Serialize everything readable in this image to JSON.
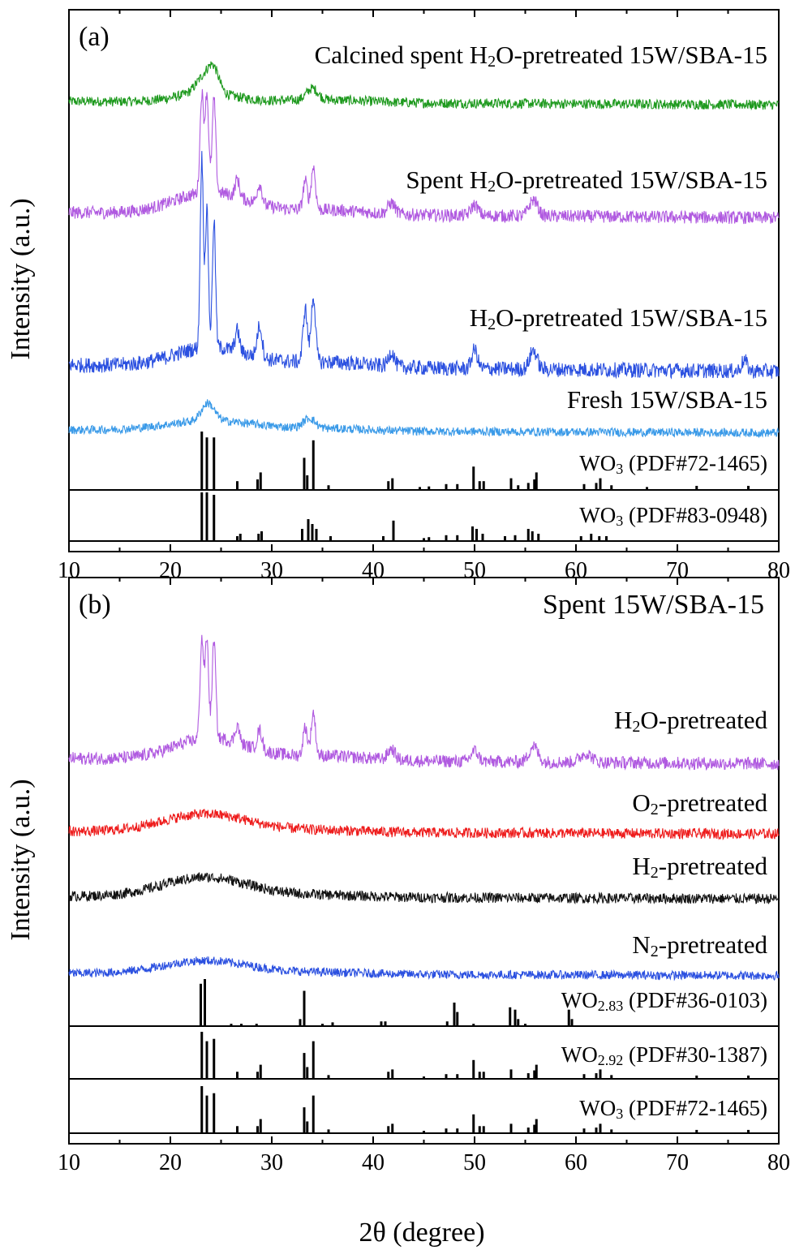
{
  "x_axis_label": "2θ (degree)",
  "y_axis_label": "Intensity (a.u.)",
  "chart_data": [
    {
      "type": "line",
      "panel_label": "(a)",
      "xlim": [
        10,
        80
      ],
      "x_ticks": [
        10,
        20,
        30,
        40,
        50,
        60,
        70,
        80
      ],
      "series": [
        {
          "name": "Calcined spent H₂O-pretreated 15W/SBA-15",
          "label_main": "Calcined spent H",
          "label_sub": "2",
          "label_tail": "O-pretreated 15W/SBA-15",
          "color": "#1f9a1f",
          "kind": "pattern",
          "base": 0.0,
          "amp": 1.0,
          "peaks": [
            [
              23.5,
              1.6,
              1.2
            ],
            [
              24.3,
              1.4,
              0.7
            ],
            [
              34.0,
              1.0,
              0.8
            ]
          ],
          "hump": [
            23.5,
            4.0,
            0.8
          ],
          "noise": 0.55
        },
        {
          "name": "Spent H₂O-pretreated 15W/SBA-15",
          "label_main": "Spent H",
          "label_sub": "2",
          "label_tail": "O-pretreated 15W/SBA-15",
          "color": "#b05ae0",
          "kind": "pattern",
          "base": 0.0,
          "amp": 1.0,
          "peaks": [
            [
              23.1,
              5.5,
              0.25
            ],
            [
              23.6,
              5.5,
              0.25
            ],
            [
              24.3,
              5.2,
              0.25
            ],
            [
              26.6,
              1.0,
              0.3
            ],
            [
              28.8,
              1.1,
              0.35
            ],
            [
              33.3,
              1.6,
              0.3
            ],
            [
              34.1,
              2.4,
              0.3
            ],
            [
              41.8,
              0.6,
              0.5
            ],
            [
              50.0,
              0.6,
              0.5
            ],
            [
              55.8,
              0.9,
              0.6
            ]
          ],
          "hump": [
            24.0,
            5.0,
            1.2
          ],
          "noise": 0.45
        },
        {
          "name": "H₂O-pretreated 15W/SBA-15",
          "label_main": "H",
          "label_sub": "2",
          "label_tail": "O-pretreated 15W/SBA-15",
          "color": "#2b50e0",
          "kind": "pattern",
          "base": 0.0,
          "amp": 1.0,
          "peaks": [
            [
              23.1,
              9.0,
              0.22
            ],
            [
              23.6,
              6.5,
              0.22
            ],
            [
              24.3,
              6.0,
              0.22
            ],
            [
              26.6,
              1.0,
              0.3
            ],
            [
              28.8,
              1.5,
              0.35
            ],
            [
              33.3,
              2.5,
              0.3
            ],
            [
              34.1,
              3.1,
              0.3
            ],
            [
              41.8,
              0.7,
              0.4
            ],
            [
              50.0,
              0.9,
              0.4
            ],
            [
              55.8,
              0.9,
              0.5
            ],
            [
              76.6,
              0.5,
              0.4
            ]
          ],
          "hump": [
            24.0,
            5.0,
            0.9
          ],
          "noise": 0.45
        },
        {
          "name": "Fresh 15W/SBA-15",
          "label_main": "Fresh 15W/SBA-15",
          "label_sub": "",
          "label_tail": "",
          "color": "#3a9ae8",
          "kind": "pattern",
          "base": 0.0,
          "amp": 1.0,
          "peaks": [
            [
              23.7,
              1.8,
              0.9
            ],
            [
              33.7,
              1.0,
              0.8
            ]
          ],
          "hump": [
            24.0,
            6.0,
            1.0
          ],
          "noise": 0.55
        },
        {
          "name": "WO₃ (PDF#72-1465)",
          "label_main": "WO",
          "label_sub": "3",
          "label_tail": " (PDF#72-1465)",
          "color": "#000000",
          "kind": "sticks",
          "sticks": [
            [
              23.1,
              1.0
            ],
            [
              23.6,
              0.9
            ],
            [
              24.3,
              0.9
            ],
            [
              26.6,
              0.15
            ],
            [
              28.6,
              0.18
            ],
            [
              28.9,
              0.3
            ],
            [
              33.2,
              0.55
            ],
            [
              33.5,
              0.25
            ],
            [
              34.1,
              0.85
            ],
            [
              35.6,
              0.08
            ],
            [
              41.5,
              0.15
            ],
            [
              41.9,
              0.2
            ],
            [
              44.6,
              0.05
            ],
            [
              45.5,
              0.06
            ],
            [
              47.2,
              0.1
            ],
            [
              48.3,
              0.1
            ],
            [
              49.9,
              0.4
            ],
            [
              50.5,
              0.15
            ],
            [
              50.9,
              0.15
            ],
            [
              53.6,
              0.2
            ],
            [
              54.3,
              0.08
            ],
            [
              55.3,
              0.12
            ],
            [
              55.9,
              0.18
            ],
            [
              56.1,
              0.3
            ],
            [
              60.8,
              0.1
            ],
            [
              62.0,
              0.12
            ],
            [
              62.4,
              0.2
            ],
            [
              63.5,
              0.08
            ],
            [
              67.0,
              0.05
            ],
            [
              71.9,
              0.07
            ],
            [
              77.0,
              0.07
            ]
          ]
        },
        {
          "name": "WO₃ (PDF#83-0948)",
          "label_main": "WO",
          "label_sub": "3",
          "label_tail": " (PDF#83-0948)",
          "color": "#000000",
          "kind": "sticks",
          "sticks": [
            [
              23.1,
              1.0
            ],
            [
              23.6,
              1.0
            ],
            [
              24.3,
              0.95
            ],
            [
              26.6,
              0.1
            ],
            [
              26.9,
              0.15
            ],
            [
              28.7,
              0.15
            ],
            [
              29.0,
              0.2
            ],
            [
              33.0,
              0.25
            ],
            [
              33.6,
              0.45
            ],
            [
              34.0,
              0.35
            ],
            [
              34.4,
              0.25
            ],
            [
              35.8,
              0.1
            ],
            [
              41.0,
              0.1
            ],
            [
              42.0,
              0.42
            ],
            [
              45.0,
              0.06
            ],
            [
              45.5,
              0.08
            ],
            [
              47.2,
              0.12
            ],
            [
              48.3,
              0.12
            ],
            [
              49.8,
              0.3
            ],
            [
              50.2,
              0.25
            ],
            [
              50.8,
              0.15
            ],
            [
              53.0,
              0.1
            ],
            [
              54.0,
              0.12
            ],
            [
              55.3,
              0.25
            ],
            [
              55.7,
              0.2
            ],
            [
              56.3,
              0.15
            ],
            [
              60.5,
              0.1
            ],
            [
              61.5,
              0.15
            ],
            [
              62.3,
              0.1
            ],
            [
              63.0,
              0.1
            ]
          ]
        }
      ]
    },
    {
      "type": "line",
      "panel_label": "(b)",
      "title": "Spent 15W/SBA-15",
      "xlim": [
        10,
        80
      ],
      "x_ticks": [
        10,
        20,
        30,
        40,
        50,
        60,
        70,
        80
      ],
      "series": [
        {
          "name": "H₂O-pretreated",
          "label_main": "H",
          "label_sub": "2",
          "label_tail": "O-pretreated",
          "color": "#b05ae0",
          "kind": "pattern",
          "base": 0.0,
          "amp": 1.0,
          "peaks": [
            [
              23.1,
              5.5,
              0.25
            ],
            [
              23.6,
              5.5,
              0.25
            ],
            [
              24.3,
              5.5,
              0.25
            ],
            [
              26.6,
              1.0,
              0.3
            ],
            [
              28.8,
              1.1,
              0.35
            ],
            [
              33.3,
              1.6,
              0.3
            ],
            [
              34.1,
              2.4,
              0.3
            ],
            [
              41.8,
              0.6,
              0.5
            ],
            [
              50.0,
              0.6,
              0.5
            ],
            [
              55.8,
              0.9,
              0.6
            ],
            [
              61.0,
              0.5,
              0.8
            ]
          ],
          "hump": [
            24.0,
            5.0,
            1.2
          ],
          "noise": 0.45
        },
        {
          "name": "O₂-pretreated",
          "label_main": "O",
          "label_sub": "2",
          "label_tail": "-pretreated",
          "color": "#ee1c1c",
          "kind": "pattern",
          "base": 0.0,
          "amp": 1.0,
          "peaks": [],
          "hump": [
            23.5,
            6.0,
            2.2
          ],
          "noise": 0.8
        },
        {
          "name": "H₂-pretreated",
          "label_main": "H",
          "label_sub": "2",
          "label_tail": "-pretreated",
          "color": "#111111",
          "kind": "pattern",
          "base": 0.0,
          "amp": 1.0,
          "peaks": [],
          "hump": [
            23.5,
            6.0,
            2.4
          ],
          "noise": 0.8
        },
        {
          "name": "N₂-pretreated",
          "label_main": "N",
          "label_sub": "2",
          "label_tail": "-pretreated",
          "color": "#2b50e0",
          "kind": "pattern",
          "base": 0.0,
          "amp": 1.0,
          "peaks": [],
          "hump": [
            23.5,
            6.0,
            1.8
          ],
          "noise": 0.75
        },
        {
          "name": "WO₂.₈₃ (PDF#36-0103)",
          "label_main": "WO",
          "label_sub": "2.83",
          "label_tail": " (PDF#36-0103)",
          "color": "#000000",
          "kind": "sticks",
          "sticks": [
            [
              23.0,
              0.9
            ],
            [
              23.4,
              1.0
            ],
            [
              26.0,
              0.05
            ],
            [
              27.0,
              0.05
            ],
            [
              28.5,
              0.05
            ],
            [
              32.8,
              0.15
            ],
            [
              33.2,
              0.75
            ],
            [
              35.0,
              0.05
            ],
            [
              36.0,
              0.08
            ],
            [
              40.8,
              0.1
            ],
            [
              41.2,
              0.1
            ],
            [
              47.3,
              0.1
            ],
            [
              48.0,
              0.5
            ],
            [
              48.3,
              0.3
            ],
            [
              49.9,
              0.05
            ],
            [
              53.5,
              0.4
            ],
            [
              54.0,
              0.35
            ],
            [
              54.3,
              0.15
            ],
            [
              55.0,
              0.05
            ],
            [
              59.3,
              0.35
            ],
            [
              59.6,
              0.15
            ]
          ]
        },
        {
          "name": "WO₂.₉₂ (PDF#30-1387)",
          "label_main": "WO",
          "label_sub": "2.92",
          "label_tail": " (PDF#30-1387)",
          "color": "#000000",
          "kind": "sticks",
          "sticks": [
            [
              23.1,
              1.0
            ],
            [
              23.6,
              0.8
            ],
            [
              24.3,
              0.85
            ],
            [
              26.6,
              0.15
            ],
            [
              28.6,
              0.15
            ],
            [
              28.9,
              0.3
            ],
            [
              33.2,
              0.55
            ],
            [
              33.5,
              0.25
            ],
            [
              34.1,
              0.8
            ],
            [
              35.6,
              0.08
            ],
            [
              41.5,
              0.15
            ],
            [
              41.9,
              0.2
            ],
            [
              45.0,
              0.05
            ],
            [
              47.2,
              0.1
            ],
            [
              48.3,
              0.1
            ],
            [
              49.9,
              0.4
            ],
            [
              50.5,
              0.15
            ],
            [
              50.9,
              0.15
            ],
            [
              53.6,
              0.2
            ],
            [
              55.3,
              0.12
            ],
            [
              55.9,
              0.18
            ],
            [
              56.1,
              0.3
            ],
            [
              60.8,
              0.1
            ],
            [
              62.0,
              0.12
            ],
            [
              62.4,
              0.2
            ],
            [
              63.5,
              0.08
            ],
            [
              71.9,
              0.07
            ],
            [
              77.0,
              0.07
            ]
          ]
        },
        {
          "name": "WO₃ (PDF#72-1465)",
          "label_main": "WO",
          "label_sub": "3",
          "label_tail": " (PDF#72-1465)",
          "color": "#000000",
          "kind": "sticks",
          "sticks": [
            [
              23.1,
              1.0
            ],
            [
              23.6,
              0.8
            ],
            [
              24.3,
              0.85
            ],
            [
              26.6,
              0.15
            ],
            [
              28.6,
              0.15
            ],
            [
              28.9,
              0.3
            ],
            [
              33.2,
              0.55
            ],
            [
              33.5,
              0.25
            ],
            [
              34.1,
              0.8
            ],
            [
              35.6,
              0.08
            ],
            [
              41.5,
              0.15
            ],
            [
              41.9,
              0.2
            ],
            [
              45.0,
              0.05
            ],
            [
              47.2,
              0.1
            ],
            [
              48.3,
              0.1
            ],
            [
              49.9,
              0.4
            ],
            [
              50.5,
              0.15
            ],
            [
              50.9,
              0.15
            ],
            [
              53.6,
              0.2
            ],
            [
              55.3,
              0.12
            ],
            [
              55.9,
              0.18
            ],
            [
              56.1,
              0.3
            ],
            [
              60.8,
              0.1
            ],
            [
              62.0,
              0.12
            ],
            [
              62.4,
              0.2
            ],
            [
              63.5,
              0.08
            ],
            [
              71.9,
              0.07
            ],
            [
              77.0,
              0.07
            ]
          ]
        }
      ]
    }
  ]
}
